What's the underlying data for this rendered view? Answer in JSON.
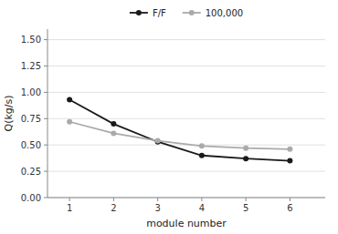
{
  "chart_data": {
    "type": "line",
    "x": [
      1,
      2,
      3,
      4,
      5,
      6
    ],
    "series": [
      {
        "name": "F/F",
        "color": "#1a1a1a",
        "marker": "circle",
        "values": [
          0.93,
          0.7,
          0.53,
          0.4,
          0.37,
          0.35
        ]
      },
      {
        "name": "100,000",
        "color": "#aaaaaa",
        "marker": "circle",
        "values": [
          0.72,
          0.61,
          0.54,
          0.49,
          0.47,
          0.46
        ]
      }
    ],
    "xlabel": "module number",
    "ylabel": "Q(kg/s)",
    "xlim": [
      0.5,
      6.8
    ],
    "xticks": [
      1,
      2,
      3,
      4,
      5,
      6
    ],
    "ylim": [
      0.0,
      1.6
    ],
    "yticks": [
      {
        "value": 0.0,
        "label": "0.00"
      },
      0.25,
      {
        "value": 0.5,
        "label": "0.50"
      },
      0.75,
      {
        "value": 1.0,
        "label": "1.00"
      },
      1.25,
      {
        "value": 1.5,
        "label": "1.50"
      }
    ],
    "grid": true,
    "legend": "top"
  }
}
